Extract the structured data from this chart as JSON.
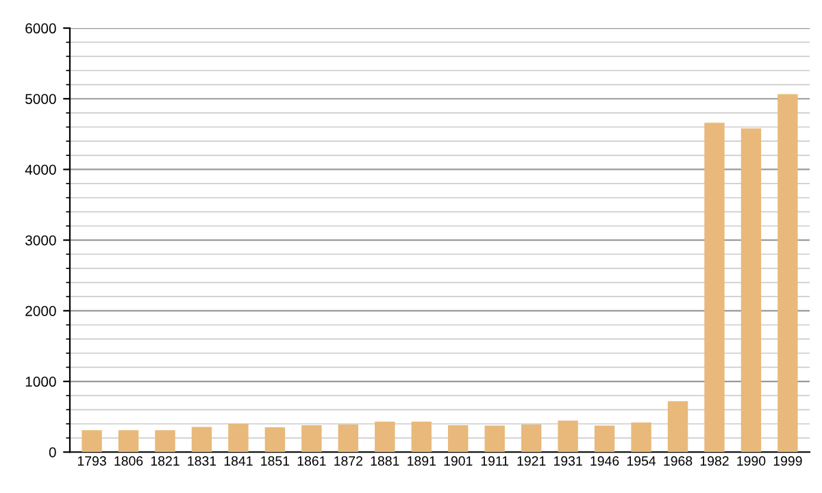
{
  "chart_data": {
    "type": "bar",
    "categories": [
      "1793",
      "1806",
      "1821",
      "1831",
      "1841",
      "1851",
      "1861",
      "1872",
      "1881",
      "1891",
      "1901",
      "1911",
      "1921",
      "1931",
      "1946",
      "1954",
      "1968",
      "1982",
      "1990",
      "1999"
    ],
    "values": [
      310,
      310,
      310,
      355,
      400,
      350,
      380,
      390,
      430,
      430,
      380,
      375,
      390,
      445,
      375,
      420,
      720,
      4660,
      4580,
      5065
    ],
    "color": "#e8b97a",
    "ylim": [
      0,
      6000
    ],
    "yticks": [
      0,
      1000,
      2000,
      3000,
      4000,
      5000,
      6000
    ],
    "grid": "y"
  }
}
